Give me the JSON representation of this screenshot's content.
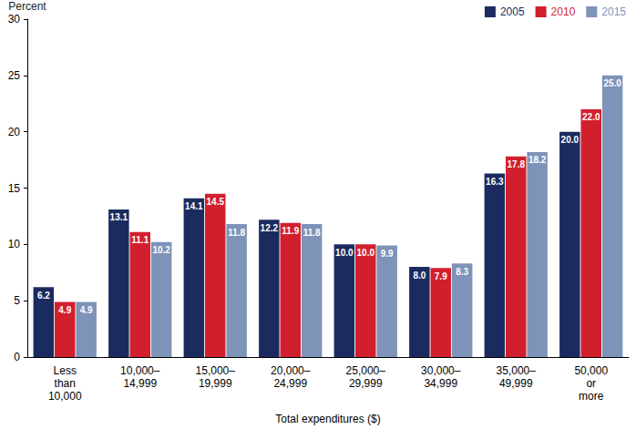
{
  "chart_data": {
    "type": "bar",
    "x_label": "Total expenditures ($)",
    "y_label": "Percent",
    "categories": [
      "Less\nthan\n10,000",
      "10,000–\n14,999",
      "15,000–\n19,999",
      "20,000–\n24,999",
      "25,000–\n29,999",
      "30,000–\n34,999",
      "35,000–\n49,999",
      "50,000\nor\nmore"
    ],
    "series": [
      {
        "name": "2005",
        "color": "#1b2b5f",
        "values": [
          6.2,
          13.1,
          14.1,
          12.2,
          10.0,
          8.0,
          16.3,
          20.0
        ],
        "value_labels": [
          "6.2",
          "13.1",
          "14.1",
          "12.2",
          "10.0",
          "8.0",
          "16.3",
          "20.0"
        ]
      },
      {
        "name": "2010",
        "color": "#d21f2e",
        "values": [
          4.9,
          11.1,
          14.5,
          11.9,
          10.0,
          7.9,
          17.8,
          22.0
        ],
        "value_labels": [
          "4.9",
          "11.1",
          "14.5",
          "11.9",
          "10.0",
          "7.9",
          "17.8",
          "22.0"
        ]
      },
      {
        "name": "2015",
        "color": "#7e93b8",
        "values": [
          4.9,
          10.2,
          11.8,
          11.8,
          9.9,
          8.3,
          18.2,
          25.0
        ],
        "value_labels": [
          "4.9",
          "10.2",
          "11.8",
          "11.8",
          "9.9",
          "8.3",
          "18.2",
          "25.0"
        ]
      }
    ],
    "ylim": [
      0,
      30
    ],
    "yticks": [
      0,
      5,
      10,
      15,
      20,
      25,
      30
    ],
    "grid": false,
    "legend": "top-right",
    "data_labels": true
  }
}
